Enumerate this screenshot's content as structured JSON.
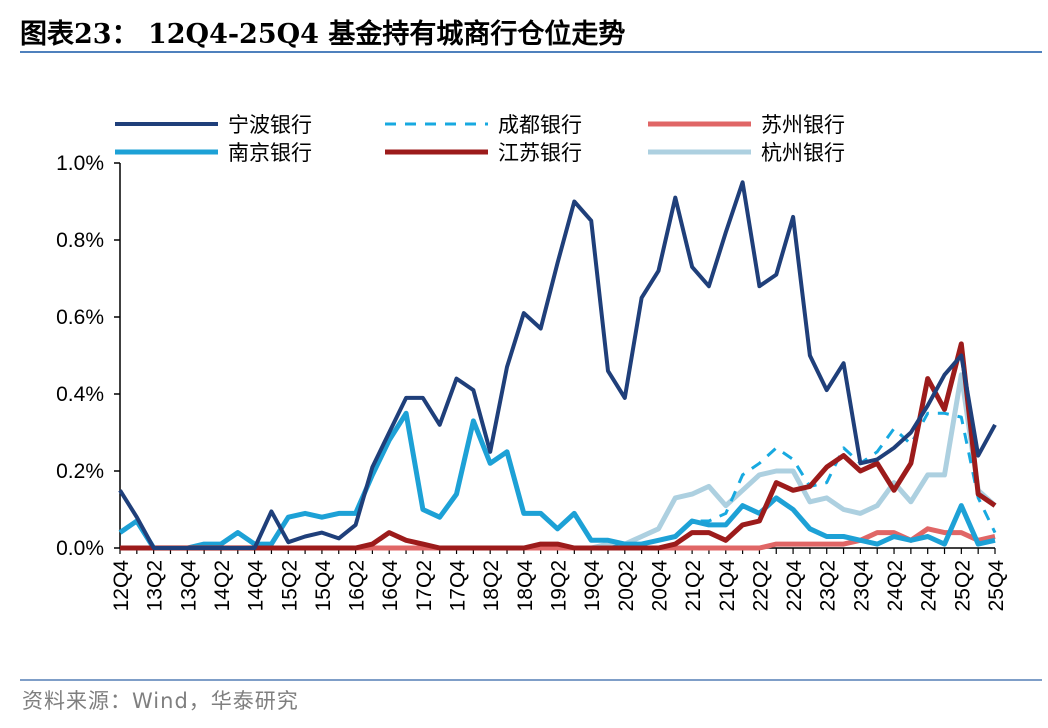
{
  "title": "图表23：   12Q4-25Q4 基金持有城商行仓位走势",
  "source": "资料来源：Wind，华泰研究",
  "colors": {
    "宁波银行": "#1f3f7a",
    "成都银行": "#17a9e0",
    "苏州银行": "#e06666",
    "南京银行": "#1da1d6",
    "江苏银行": "#9c1b1b",
    "杭州银行": "#add0e0",
    "axis": "#000000",
    "rule": "#4f81bd"
  },
  "chart_data": {
    "type": "line",
    "title": "",
    "xlabel": "",
    "ylabel": "",
    "ylim": [
      0,
      0.01
    ],
    "yticks": [
      "0.0%",
      "0.2%",
      "0.4%",
      "0.6%",
      "0.8%",
      "1.0%"
    ],
    "grid": false,
    "legend": "top",
    "x": [
      "12Q4",
      "13Q1",
      "13Q2",
      "13Q3",
      "13Q4",
      "14Q1",
      "14Q2",
      "14Q3",
      "14Q4",
      "15Q1",
      "15Q2",
      "15Q3",
      "15Q4",
      "16Q1",
      "16Q2",
      "16Q3",
      "16Q4",
      "17Q1",
      "17Q2",
      "17Q3",
      "17Q4",
      "18Q1",
      "18Q2",
      "18Q3",
      "18Q4",
      "19Q1",
      "19Q2",
      "19Q3",
      "19Q4",
      "20Q1",
      "20Q2",
      "20Q3",
      "20Q4",
      "21Q1",
      "21Q2",
      "21Q3",
      "21Q4",
      "22Q1",
      "22Q2",
      "22Q3",
      "22Q4",
      "23Q1",
      "23Q2",
      "23Q3",
      "23Q4",
      "24Q1",
      "24Q2",
      "24Q3",
      "24Q4",
      "25Q1",
      "25Q2",
      "25Q3",
      "25Q4"
    ],
    "xticks": [
      "12Q4",
      "13Q2",
      "13Q4",
      "14Q2",
      "14Q4",
      "15Q2",
      "15Q4",
      "16Q2",
      "16Q4",
      "17Q2",
      "17Q4",
      "18Q2",
      "18Q4",
      "19Q2",
      "19Q4",
      "20Q2",
      "20Q4",
      "21Q2",
      "21Q4",
      "22Q2",
      "22Q4",
      "23Q2",
      "23Q4",
      "24Q2",
      "24Q4",
      "25Q2",
      "25Q4"
    ],
    "series": [
      {
        "name": "宁波银行",
        "style": "solid",
        "width": 4,
        "values": [
          0.0015,
          0.0008,
          0.0,
          0.0,
          0.0,
          0.0,
          0.0,
          0.0,
          0.0,
          0.00095,
          0.00015,
          0.0003,
          0.0004,
          0.00025,
          0.0006,
          0.0021,
          0.003,
          0.0039,
          0.0039,
          0.0032,
          0.0044,
          0.0041,
          0.0025,
          0.0047,
          0.0061,
          0.0057,
          0.0074,
          0.009,
          0.0085,
          0.0046,
          0.0039,
          0.0065,
          0.0072,
          0.0091,
          0.0073,
          0.0068,
          0.0082,
          0.0095,
          0.0068,
          0.0071,
          0.0086,
          0.005,
          0.0041,
          0.0048,
          0.0022,
          0.0023,
          0.0026,
          0.003,
          0.0037,
          0.0045,
          0.005,
          0.0024,
          0.0032
        ]
      },
      {
        "name": "南京银行",
        "style": "solid",
        "width": 5,
        "values": [
          0.0004,
          0.0007,
          0.0,
          0.0,
          0.0,
          0.0001,
          0.0001,
          0.0004,
          0.0001,
          0.0001,
          0.0008,
          0.0009,
          0.0008,
          0.0009,
          0.0009,
          0.0019,
          0.0028,
          0.0035,
          0.001,
          0.0008,
          0.0014,
          0.0033,
          0.0022,
          0.0025,
          0.0009,
          0.0009,
          0.0005,
          0.0009,
          0.0002,
          0.0002,
          0.0001,
          0.0001,
          0.0002,
          0.0003,
          0.0007,
          0.0006,
          0.0006,
          0.0011,
          0.0009,
          0.0013,
          0.001,
          0.0005,
          0.0003,
          0.0003,
          0.0002,
          0.0001,
          0.0003,
          0.0002,
          0.0003,
          0.0001,
          0.0011,
          0.0001,
          0.0002
        ]
      },
      {
        "name": "成都银行",
        "style": "dashed",
        "width": 3,
        "values": [
          null,
          null,
          null,
          null,
          null,
          null,
          null,
          null,
          null,
          null,
          null,
          null,
          null,
          null,
          null,
          null,
          null,
          null,
          null,
          null,
          null,
          null,
          null,
          null,
          null,
          null,
          null,
          null,
          null,
          0.0,
          0.0001,
          0.0001,
          0.0002,
          0.0003,
          0.0007,
          0.0007,
          0.0009,
          0.0019,
          0.0022,
          0.0026,
          0.0023,
          0.0016,
          0.0017,
          0.0026,
          0.0022,
          0.0025,
          0.0031,
          0.0027,
          0.0035,
          0.0035,
          0.0034,
          0.0013,
          0.0004
        ]
      },
      {
        "name": "江苏银行",
        "style": "solid",
        "width": 5,
        "values": [
          0.0,
          0.0,
          0.0,
          0.0,
          0.0,
          0.0,
          0.0,
          0.0,
          0.0,
          0.0,
          0.0,
          0.0,
          0.0,
          0.0,
          0.0,
          0.0001,
          0.0004,
          0.0002,
          0.0001,
          0.0,
          0.0,
          0.0,
          0.0,
          0.0,
          0.0,
          0.0001,
          0.0001,
          0.0,
          0.0,
          0.0,
          0.0,
          0.0,
          0.0,
          0.0001,
          0.0004,
          0.0004,
          0.0002,
          0.0006,
          0.0007,
          0.0017,
          0.0015,
          0.0016,
          0.0021,
          0.0024,
          0.002,
          0.0022,
          0.0015,
          0.0022,
          0.0044,
          0.0036,
          0.0053,
          0.0014,
          0.0011
        ]
      },
      {
        "name": "苏州银行",
        "style": "solid",
        "width": 5,
        "values": [
          0.0,
          0.0,
          0.0,
          0.0,
          0.0,
          0.0,
          0.0,
          0.0,
          0.0,
          0.0,
          0.0,
          0.0,
          0.0,
          0.0,
          0.0,
          0.0,
          0.0,
          0.0,
          0.0,
          0.0,
          0.0,
          0.0,
          0.0,
          0.0,
          0.0,
          0.0,
          0.0,
          0.0,
          0.0,
          0.0,
          0.0,
          0.0,
          0.0,
          0.0,
          0.0,
          0.0,
          0.0,
          0.0,
          0.0,
          0.0001,
          0.0001,
          0.0001,
          0.0001,
          0.0001,
          0.0002,
          0.0004,
          0.0004,
          0.0002,
          0.0005,
          0.0004,
          0.0004,
          0.0002,
          0.0003
        ]
      },
      {
        "name": "杭州银行",
        "style": "solid",
        "width": 5,
        "values": [
          0.0,
          0.0,
          0.0,
          0.0,
          0.0,
          0.0,
          0.0,
          0.0,
          0.0,
          0.0,
          0.0,
          0.0,
          0.0,
          0.0,
          0.0,
          0.0,
          0.0,
          0.0,
          0.0,
          0.0,
          0.0,
          0.0,
          0.0,
          0.0,
          0.0,
          0.0,
          0.0,
          0.0,
          0.0,
          0.0001,
          0.0001,
          0.0003,
          0.0005,
          0.0013,
          0.0014,
          0.0016,
          0.0011,
          0.0015,
          0.0019,
          0.002,
          0.002,
          0.0012,
          0.0013,
          0.001,
          0.0009,
          0.0011,
          0.0017,
          0.0012,
          0.0019,
          0.0019,
          0.0045,
          0.0015,
          0.0011
        ]
      }
    ],
    "legend_order": [
      "宁波银行",
      "成都银行",
      "苏州银行",
      "南京银行",
      "江苏银行",
      "杭州银行"
    ]
  }
}
